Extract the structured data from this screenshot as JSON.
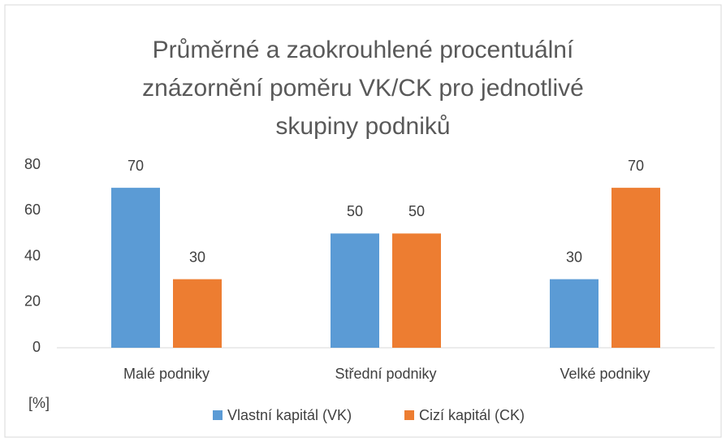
{
  "chart_data": {
    "type": "bar",
    "title": "Průměrné a zaokrouhlené procentuální znázornění poměru VK/CK pro jednotlivé skupiny podniků",
    "y_label": "[%]",
    "categories": [
      "Malé podniky",
      "Střední podniky",
      "Velké podniky"
    ],
    "series": [
      {
        "name": "Vlastní kapitál (VK)",
        "color": "#5b9bd5",
        "values": [
          70,
          50,
          30
        ]
      },
      {
        "name": "Cizí kapitál (CK)",
        "color": "#ed7d31",
        "values": [
          30,
          50,
          70
        ]
      }
    ],
    "ylim": [
      0,
      80
    ],
    "yticks": [
      0,
      20,
      40,
      60,
      80
    ],
    "grid": false,
    "legend": "bottom"
  }
}
